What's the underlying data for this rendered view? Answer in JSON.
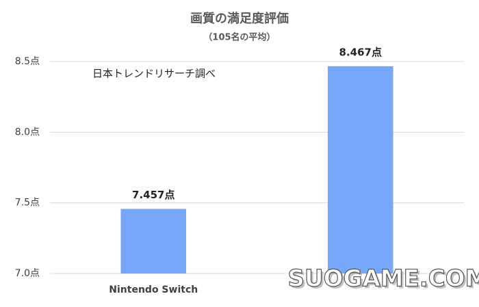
{
  "chart_data": {
    "type": "bar",
    "title": "画質の満足度評価",
    "subtitle": "（105名の平均）",
    "annotation": "日本トレンドリサーチ調べ",
    "watermark": "SUOGAME.COM",
    "categories": [
      "Nintendo Switch",
      null
    ],
    "values": [
      7.457,
      8.467
    ],
    "value_labels": [
      "7.457点",
      "8.467点"
    ],
    "color": "#76a7f8",
    "ylim": [
      7.0,
      8.5
    ],
    "yticks": [
      {
        "value": 7.0,
        "label": "7.0点"
      },
      {
        "value": 7.5,
        "label": "7.5点"
      },
      {
        "value": 8.0,
        "label": "8.0点"
      },
      {
        "value": 8.5,
        "label": "8.5点"
      }
    ],
    "grid": true
  }
}
